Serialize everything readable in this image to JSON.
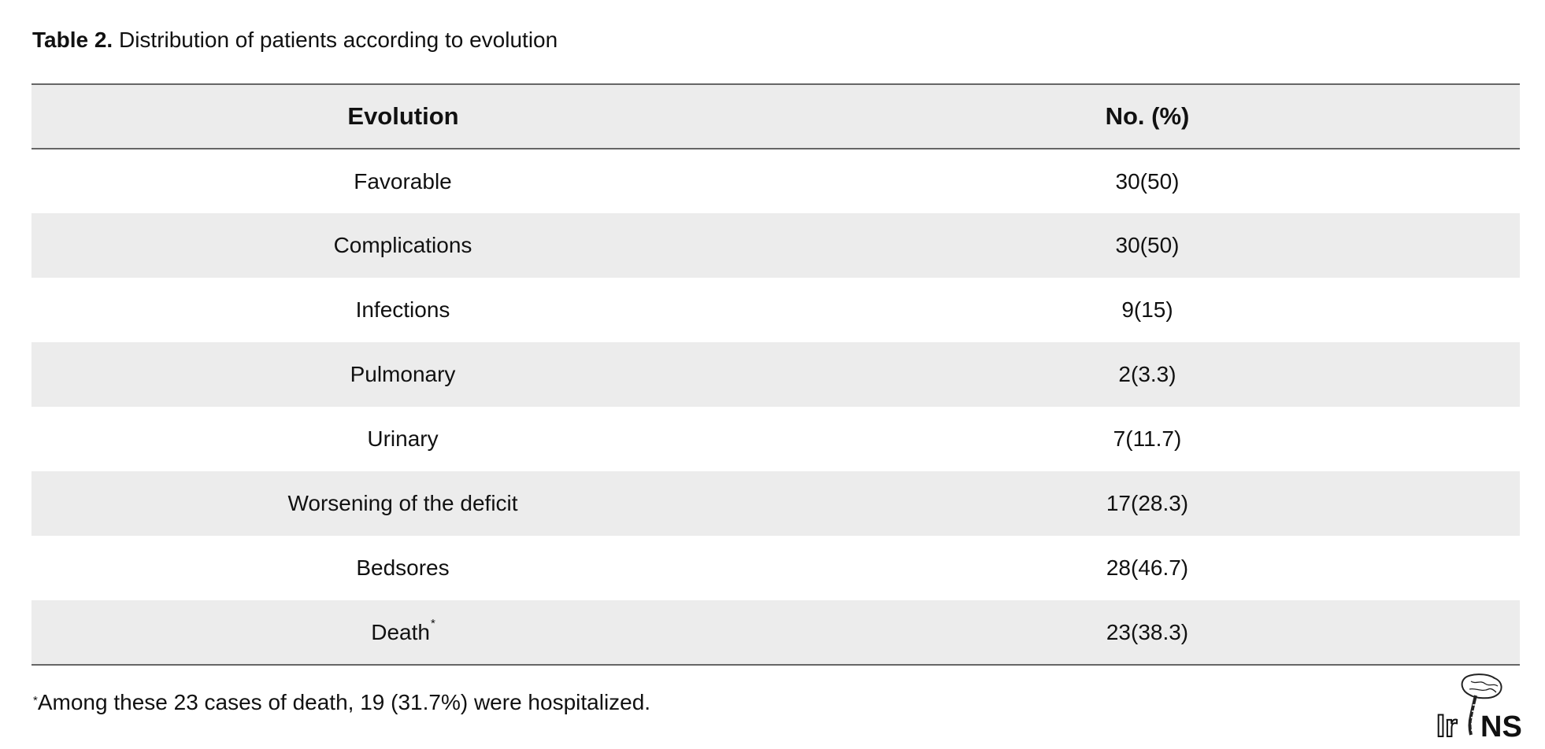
{
  "caption": {
    "label": "Table 2.",
    "text": "Distribution of patients according to evolution"
  },
  "table": {
    "headers": [
      "Evolution",
      "No. (%)"
    ],
    "rows": [
      {
        "evolution": "Favorable",
        "marker": "",
        "value": "30(50)"
      },
      {
        "evolution": "Complications",
        "marker": "",
        "value": "30(50)"
      },
      {
        "evolution": "Infections",
        "marker": "",
        "value": "9(15)"
      },
      {
        "evolution": "Pulmonary",
        "marker": "",
        "value": "2(3.3)"
      },
      {
        "evolution": "Urinary",
        "marker": "",
        "value": "7(11.7)"
      },
      {
        "evolution": "Worsening of the deficit",
        "marker": "",
        "value": "17(28.3)"
      },
      {
        "evolution": "Bedsores",
        "marker": "",
        "value": "28(46.7)"
      },
      {
        "evolution": "Death",
        "marker": "*",
        "value": "23(38.3)"
      }
    ]
  },
  "footnote": {
    "marker": "*",
    "text": "Among these 23 cases of death, 19 (31.7%) were hospitalized."
  },
  "logo": {
    "text_left": "Ir",
    "text_right": "NS",
    "icon": "brain-spine-icon"
  }
}
